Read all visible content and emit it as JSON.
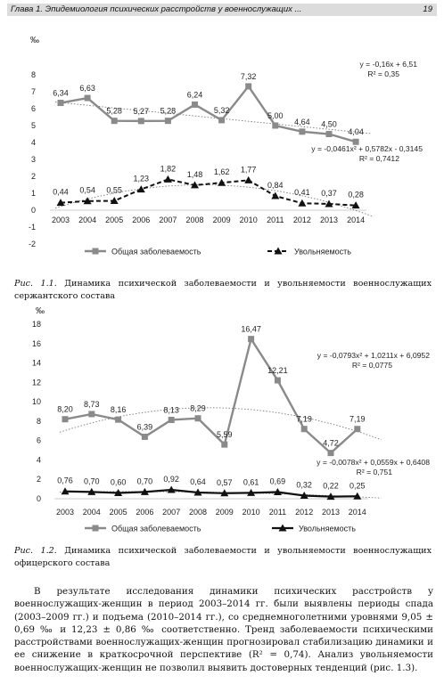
{
  "header": {
    "title": "Глава 1. Эпидемиология психических расстройств у военнослужащих ...",
    "page_number": "19"
  },
  "figure1": {
    "caption_label": "Рис. 1.1.",
    "caption_text": "Динамика психической заболеваемости и увольняемости военнослужащих сержантского состава"
  },
  "figure2": {
    "caption_label": "Рис. 1.2.",
    "caption_text": "Динамика психической заболеваемости и увольняемости военнослужащих офицерского состава"
  },
  "body_text": "В результате исследования динамики психических расстройств у военнослужащих-женщин в период 2003–2014 гг. были выявлены периоды спада (2003–2009 гг.) и подъема (2010–2014 гг.), со среднемноголетними уровнями 9,05 ± 0,69 ‰ и 12,23 ± 0,86 ‰ соответственно. Тренд заболеваемости психическими расстройствами военнослужащих-женщин прогнозировал стабилизацию динамики и ее снижение в краткосрочной перспективе (R² = 0,74). Анализ увольняемости военнослужащих-женщин не позволил выявить достоверных тенденций (рис. 1.3).",
  "chart_data": [
    {
      "type": "line",
      "ylabel": "‰",
      "ylim": [
        -2,
        8
      ],
      "yticks": [
        "-2",
        "-1",
        "0",
        "1",
        "2",
        "3",
        "4",
        "5",
        "6",
        "7",
        "8"
      ],
      "x": [
        "2003",
        "2004",
        "2005",
        "2006",
        "2007",
        "2008",
        "2009",
        "2010",
        "2011",
        "2012",
        "2013",
        "2014"
      ],
      "series": [
        {
          "name": "Общая заболеваемость",
          "values": [
            6.34,
            6.63,
            5.28,
            5.27,
            5.28,
            6.24,
            5.32,
            7.32,
            5.0,
            4.64,
            4.5,
            4.04
          ],
          "labels": [
            "6,34",
            "6,63",
            "5,28",
            "5,27",
            "5,28",
            "6,24",
            "5,32",
            "7,32",
            "5,00",
            "4,64",
            "4,50",
            "4,04"
          ],
          "color": "#8a8a8a"
        },
        {
          "name": "Увольняемость",
          "values": [
            0.44,
            0.54,
            0.55,
            1.23,
            1.82,
            1.48,
            1.62,
            1.77,
            0.84,
            0.41,
            0.37,
            0.28
          ],
          "labels": [
            "0,44",
            "0,54",
            "0,55",
            "1,23",
            "1,82",
            "1,48",
            "1,62",
            "1,77",
            "0,84",
            "0,41",
            "0,37",
            "0,28"
          ],
          "color": "#111111"
        }
      ],
      "trends": [
        {
          "equation": "y = -0,16x + 6,51",
          "r2": "R² = 0,35"
        },
        {
          "equation": "y = -0,0461x² + 0,5782x - 0,3145",
          "r2": "R² = 0,7412"
        }
      ],
      "legend": "bottom",
      "grid": false
    },
    {
      "type": "line",
      "ylabel": "‰",
      "ylim": [
        0,
        18
      ],
      "yticks": [
        "0",
        "2",
        "4",
        "6",
        "8",
        "10",
        "12",
        "14",
        "16",
        "18"
      ],
      "x": [
        "2003",
        "2004",
        "2005",
        "2006",
        "2007",
        "2008",
        "2009",
        "2010",
        "2011",
        "2012",
        "2013",
        "2014"
      ],
      "series": [
        {
          "name": "Общая заболеваемость",
          "values": [
            8.2,
            8.73,
            8.16,
            6.39,
            8.13,
            8.29,
            5.59,
            16.47,
            12.21,
            7.19,
            4.72,
            7.19
          ],
          "labels": [
            "8,20",
            "8,73",
            "8,16",
            "6,39",
            "8,13",
            "8,29",
            "5,59",
            "16,47",
            "12,21",
            "7,19",
            "4,72",
            "7,19"
          ],
          "color": "#8a8a8a"
        },
        {
          "name": "Увольняемость",
          "values": [
            0.76,
            0.7,
            0.6,
            0.7,
            0.92,
            0.64,
            0.57,
            0.61,
            0.69,
            0.32,
            0.22,
            0.25
          ],
          "labels": [
            "0,76",
            "0,70",
            "0,60",
            "0,70",
            "0,92",
            "0,64",
            "0,57",
            "0,61",
            "0,69",
            "0,32",
            "0,22",
            "0,25"
          ],
          "color": "#111111"
        }
      ],
      "trends": [
        {
          "equation": "y = -0,0793x² + 1,0211x + 6,0952",
          "r2": "R² = 0,0775"
        },
        {
          "equation": "y = -0,0078x² + 0,0559x + 0,6408",
          "r2": "R² = 0,751"
        }
      ],
      "legend": "bottom",
      "grid": false
    }
  ]
}
